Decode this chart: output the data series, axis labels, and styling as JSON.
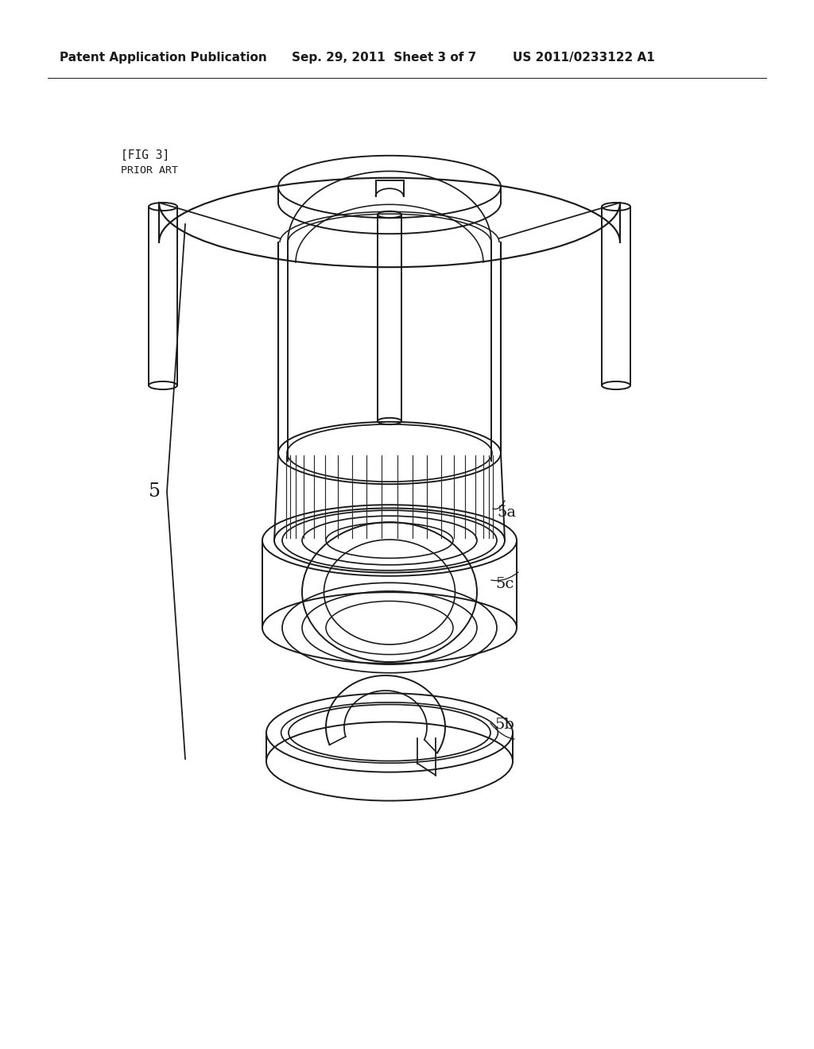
{
  "background_color": "#ffffff",
  "header_left": "Patent Application Publication",
  "header_center": "Sep. 29, 2011  Sheet 3 of 7",
  "header_right": "US 2011/0233122 A1",
  "fig_label": "[FIG 3]",
  "prior_art_label": "PRIOR ART",
  "label_5": "5",
  "label_5a": "5a",
  "label_5b": "5b",
  "label_5c": "5c",
  "line_color": "#1a1a1a",
  "lw": 1.4
}
